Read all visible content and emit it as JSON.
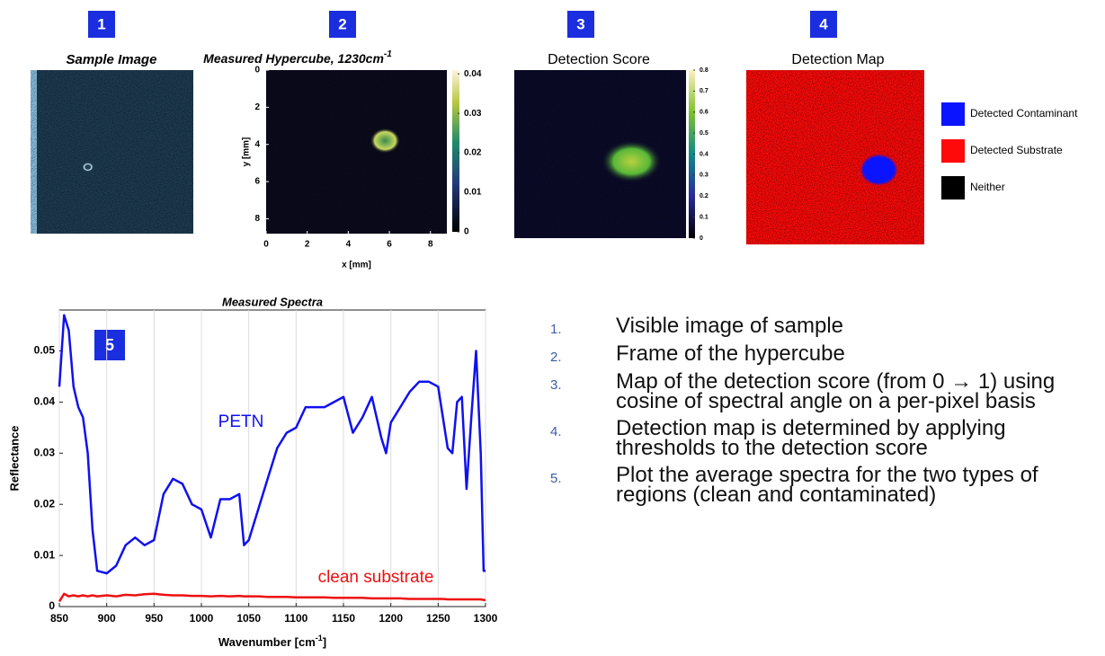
{
  "panels": [
    {
      "badge": "1",
      "title": "Sample Image"
    },
    {
      "badge": "2",
      "title": "Measured Hypercube, 1230cm",
      "title_sup": "-1",
      "xlabel": "x [mm]",
      "ylabel": "y [mm]",
      "xlim": [
        0,
        8.8
      ],
      "ylim": [
        0,
        8.8
      ],
      "xticks": [
        0,
        2,
        4,
        6,
        8
      ],
      "yticks": [
        0,
        2,
        4,
        6,
        8
      ],
      "colorbar_lim": [
        0,
        0.0405
      ],
      "colorbar_ticks": [
        0,
        0.01,
        0.02,
        0.03,
        0.04
      ]
    },
    {
      "badge": "3",
      "title": "Detection Score",
      "colorbar_lim": [
        0,
        0.8
      ],
      "colorbar_ticks": [
        0,
        0.1,
        0.2,
        0.3,
        0.4,
        0.5,
        0.6,
        0.7,
        0.8
      ]
    },
    {
      "badge": "4",
      "title": "Detection Map",
      "legend": [
        {
          "name": "Detected Contaminant",
          "color": "#0a14ff"
        },
        {
          "name": "Detected Substrate",
          "color": "#ff0a0a"
        },
        {
          "name": "Neither",
          "color": "#000000"
        }
      ]
    }
  ],
  "chart_data": {
    "type": "line",
    "title": "Measured Spectra",
    "badge": "5",
    "xlabel": "Wavenumber [cm",
    "xlabel_sup": "-1",
    "xlabel_end": "]",
    "ylabel": "Reflectance",
    "x": [
      850,
      855,
      860,
      865,
      870,
      875,
      880,
      885,
      890,
      900,
      910,
      920,
      930,
      940,
      950,
      960,
      970,
      980,
      990,
      1000,
      1010,
      1020,
      1030,
      1040,
      1045,
      1050,
      1060,
      1070,
      1080,
      1090,
      1100,
      1110,
      1120,
      1130,
      1140,
      1150,
      1160,
      1170,
      1180,
      1190,
      1195,
      1200,
      1210,
      1220,
      1230,
      1240,
      1250,
      1255,
      1260,
      1265,
      1270,
      1275,
      1280,
      1285,
      1290,
      1295,
      1298,
      1300
    ],
    "series": [
      {
        "name": "PETN",
        "color": "#1010f0",
        "values": [
          0.043,
          0.057,
          0.054,
          0.043,
          0.039,
          0.037,
          0.03,
          0.015,
          0.007,
          0.0065,
          0.008,
          0.012,
          0.0135,
          0.012,
          0.013,
          0.022,
          0.025,
          0.024,
          0.02,
          0.019,
          0.0135,
          0.021,
          0.021,
          0.022,
          0.012,
          0.013,
          0.019,
          0.025,
          0.031,
          0.034,
          0.035,
          0.039,
          0.039,
          0.039,
          0.04,
          0.041,
          0.034,
          0.037,
          0.041,
          0.033,
          0.03,
          0.036,
          0.039,
          0.042,
          0.044,
          0.044,
          0.043,
          0.037,
          0.031,
          0.03,
          0.04,
          0.041,
          0.023,
          0.037,
          0.05,
          0.03,
          0.007,
          0.007
        ]
      },
      {
        "name": "clean substrate",
        "color": "#ee1010",
        "values": [
          0.001,
          0.0025,
          0.002,
          0.0022,
          0.002,
          0.0022,
          0.002,
          0.0022,
          0.002,
          0.0022,
          0.002,
          0.0023,
          0.0022,
          0.0024,
          0.0025,
          0.0023,
          0.0022,
          0.0022,
          0.0021,
          0.0021,
          0.002,
          0.0021,
          0.002,
          0.0021,
          0.002,
          0.002,
          0.002,
          0.0019,
          0.0019,
          0.0019,
          0.0018,
          0.0018,
          0.0018,
          0.0018,
          0.0017,
          0.0017,
          0.0017,
          0.0017,
          0.0016,
          0.0016,
          0.0016,
          0.0016,
          0.0016,
          0.0015,
          0.0015,
          0.0015,
          0.0015,
          0.0015,
          0.0014,
          0.0014,
          0.0014,
          0.0014,
          0.0014,
          0.0014,
          0.0014,
          0.0014,
          0.0013,
          0.0013
        ]
      }
    ],
    "xlim": [
      850,
      1300
    ],
    "ylim": [
      0,
      0.058
    ],
    "xticks": [
      850,
      900,
      950,
      1000,
      1050,
      1100,
      1150,
      1200,
      1250,
      1300
    ],
    "yticks": [
      0,
      0.01,
      0.02,
      0.03,
      0.04,
      0.05
    ],
    "grid": "x"
  },
  "notes": [
    {
      "number": "1.",
      "text": "Visible image of sample"
    },
    {
      "number": "2.",
      "text": "Frame of the hypercube"
    },
    {
      "number": "3.",
      "text": "Map of the detection score (from 0 → 1) using cosine of spectral angle on a per-pixel basis"
    },
    {
      "number": "4.",
      "text": "Detection map is determined by applying thresholds to the detection score"
    },
    {
      "number": "5.",
      "text": "Plot the average spectra for the two types of regions (clean and contaminated)"
    }
  ]
}
